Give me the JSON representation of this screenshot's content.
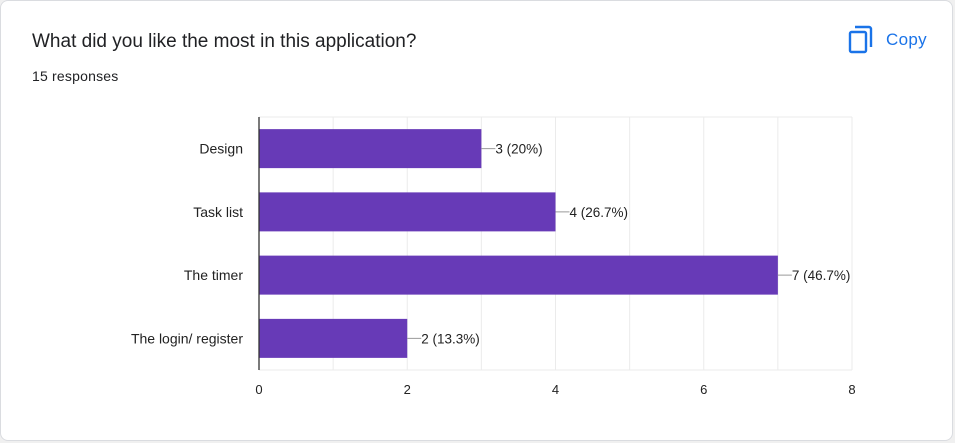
{
  "question": {
    "title": "What did you like the most in this application?",
    "responses": "15 responses"
  },
  "copy_button": {
    "label": "Copy",
    "icon": "copy-icon"
  },
  "colors": {
    "bar": "#673ab7",
    "accent": "#1a73e8",
    "grid": "#ebebeb",
    "axis": "#333333",
    "text": "#222222"
  },
  "chart_data": {
    "type": "bar",
    "orientation": "horizontal",
    "categories": [
      "Design",
      "Task list",
      "The timer",
      "The login/ register"
    ],
    "values": [
      3,
      4,
      7,
      2
    ],
    "data_labels": [
      "3 (20%)",
      "4 (26.7%)",
      "7 (46.7%)",
      "2 (13.3%)"
    ],
    "xlim": [
      0,
      8
    ],
    "x_ticks": [
      0,
      2,
      4,
      6,
      8
    ],
    "grid": true
  }
}
